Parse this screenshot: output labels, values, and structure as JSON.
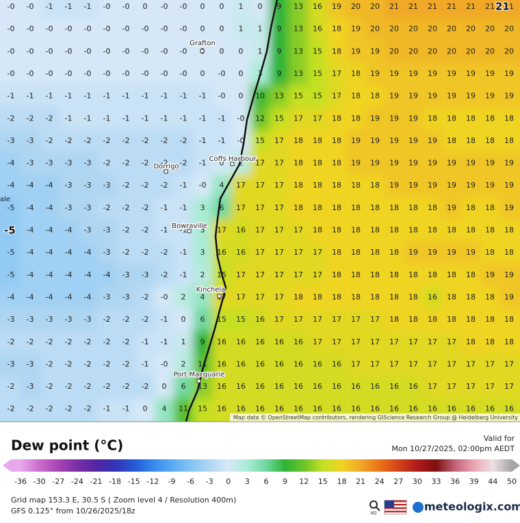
{
  "map": {
    "grid": [
      [
        "-0",
        "-0",
        "-1",
        "-1",
        "-1",
        "-0",
        "-0",
        "0",
        "-0",
        "-0",
        "0",
        "0",
        "1",
        "0",
        "9",
        "13",
        "16",
        "19",
        "20",
        "20",
        "21",
        "21",
        "21",
        "21",
        "21",
        "21",
        "21"
      ],
      [
        "-0",
        "-0",
        "-0",
        "-0",
        "-0",
        "-0",
        "-0",
        "-0",
        "-0",
        "-0",
        "0",
        "0",
        "1",
        "1",
        "9",
        "13",
        "16",
        "18",
        "19",
        "20",
        "20",
        "20",
        "20",
        "20",
        "20",
        "20",
        "20"
      ],
      [
        "-0",
        "-0",
        "-0",
        "-0",
        "-0",
        "-0",
        "-0",
        "-0",
        "-0",
        "-0",
        "0",
        "0",
        "0",
        "1",
        "9",
        "13",
        "15",
        "18",
        "19",
        "19",
        "20",
        "20",
        "20",
        "20",
        "20",
        "20",
        "20"
      ],
      [
        "-0",
        "-0",
        "-0",
        "-0",
        "-0",
        "-0",
        "-0",
        "-0",
        "-0",
        "-0",
        "0",
        "-0",
        "0",
        "3",
        "9",
        "13",
        "15",
        "17",
        "18",
        "19",
        "19",
        "19",
        "19",
        "19",
        "19",
        "19",
        "19"
      ],
      [
        "-1",
        "-1",
        "-1",
        "-1",
        "-1",
        "-1",
        "-1",
        "-1",
        "-1",
        "-1",
        "-1",
        "-0",
        "0",
        "10",
        "13",
        "15",
        "15",
        "17",
        "18",
        "18",
        "19",
        "19",
        "19",
        "19",
        "19",
        "19",
        "19"
      ],
      [
        "-2",
        "-2",
        "-2",
        "-1",
        "-1",
        "-1",
        "-1",
        "-1",
        "-1",
        "-1",
        "-1",
        "-1",
        "-0",
        "12",
        "15",
        "17",
        "17",
        "18",
        "18",
        "19",
        "19",
        "19",
        "18",
        "18",
        "18",
        "18",
        "18"
      ],
      [
        "-3",
        "-3",
        "-2",
        "-2",
        "-2",
        "-2",
        "-2",
        "-2",
        "-2",
        "-2",
        "-1",
        "-1",
        "-0",
        "15",
        "17",
        "18",
        "18",
        "18",
        "19",
        "19",
        "19",
        "19",
        "19",
        "18",
        "18",
        "18",
        "18"
      ],
      [
        "-4",
        "-3",
        "-3",
        "-3",
        "-3",
        "-2",
        "-2",
        "-2",
        "-2",
        "-2",
        "-1",
        "0",
        "2",
        "17",
        "17",
        "18",
        "18",
        "18",
        "19",
        "19",
        "19",
        "19",
        "19",
        "19",
        "19",
        "19",
        "19"
      ],
      [
        "-4",
        "-4",
        "-4",
        "-3",
        "-3",
        "-3",
        "-2",
        "-2",
        "-2",
        "-1",
        "-0",
        "4",
        "17",
        "17",
        "17",
        "18",
        "18",
        "18",
        "18",
        "18",
        "19",
        "19",
        "19",
        "19",
        "19",
        "19",
        "19"
      ],
      [
        "-5",
        "-4",
        "-4",
        "-3",
        "-3",
        "-2",
        "-2",
        "-2",
        "-1",
        "-1",
        "3",
        "6",
        "17",
        "17",
        "17",
        "18",
        "18",
        "18",
        "18",
        "18",
        "18",
        "18",
        "18",
        "19",
        "18",
        "18",
        "19"
      ],
      [
        "-5",
        "-4",
        "-4",
        "-4",
        "-3",
        "-3",
        "-2",
        "-2",
        "-1",
        "-1",
        "3",
        "17",
        "16",
        "17",
        "17",
        "17",
        "18",
        "18",
        "18",
        "18",
        "18",
        "18",
        "18",
        "18",
        "18",
        "18",
        "18"
      ],
      [
        "-5",
        "-4",
        "-4",
        "-4",
        "-4",
        "-3",
        "-2",
        "-2",
        "-2",
        "-1",
        "3",
        "16",
        "16",
        "17",
        "17",
        "17",
        "17",
        "18",
        "18",
        "18",
        "18",
        "19",
        "19",
        "19",
        "19",
        "18",
        "18"
      ],
      [
        "-5",
        "-4",
        "-4",
        "-4",
        "-4",
        "-4",
        "-3",
        "-3",
        "-2",
        "-1",
        "2",
        "15",
        "17",
        "17",
        "17",
        "17",
        "17",
        "18",
        "18",
        "18",
        "18",
        "18",
        "18",
        "18",
        "18",
        "19",
        "19"
      ],
      [
        "-4",
        "-4",
        "-4",
        "-4",
        "-4",
        "-3",
        "-3",
        "-2",
        "-0",
        "2",
        "4",
        "17",
        "17",
        "17",
        "17",
        "18",
        "18",
        "18",
        "18",
        "18",
        "18",
        "18",
        "16",
        "18",
        "18",
        "18",
        "19"
      ],
      [
        "-3",
        "-3",
        "-3",
        "-3",
        "-3",
        "-2",
        "-2",
        "-2",
        "-1",
        "0",
        "6",
        "15",
        "15",
        "16",
        "17",
        "17",
        "17",
        "17",
        "17",
        "17",
        "18",
        "18",
        "18",
        "18",
        "18",
        "18",
        "18"
      ],
      [
        "-2",
        "-2",
        "-2",
        "-2",
        "-2",
        "-2",
        "-2",
        "-1",
        "-1",
        "1",
        "9",
        "16",
        "16",
        "16",
        "16",
        "16",
        "17",
        "17",
        "17",
        "17",
        "17",
        "17",
        "17",
        "17",
        "18",
        "18",
        "18"
      ],
      [
        "-3",
        "-3",
        "-2",
        "-2",
        "-2",
        "-2",
        "-2",
        "-1",
        "-0",
        "2",
        "11",
        "16",
        "16",
        "16",
        "16",
        "16",
        "16",
        "16",
        "17",
        "17",
        "17",
        "17",
        "17",
        "17",
        "17",
        "17",
        "17"
      ],
      [
        "-2",
        "-3",
        "-2",
        "-2",
        "-2",
        "-2",
        "-2",
        "-2",
        "0",
        "6",
        "13",
        "16",
        "16",
        "16",
        "16",
        "16",
        "16",
        "16",
        "16",
        "16",
        "16",
        "16",
        "17",
        "17",
        "17",
        "17",
        "17"
      ],
      [
        "-2",
        "-2",
        "-2",
        "-2",
        "-2",
        "-1",
        "-1",
        "0",
        "4",
        "11",
        "15",
        "16",
        "16",
        "16",
        "16",
        "16",
        "16",
        "16",
        "16",
        "16",
        "16",
        "16",
        "16",
        "16",
        "16",
        "16",
        "16"
      ]
    ],
    "places": [
      "Grafton",
      "Coffs Harbour",
      "Dorrigo",
      "Bowraville",
      "Kinchela",
      "Port Macquarie"
    ],
    "edge_labels": [
      "ale",
      "-5",
      "21"
    ],
    "attribution": "Map data © OpenStreetMap contributors, rendering GIScience Research Group @ Heidelberg University"
  },
  "legend": {
    "title": "Dew point (°C)",
    "valid_label": "Valid for",
    "valid_time": "Mon 10/27/2025, 02:00pm AEDT",
    "labels": [
      "-36",
      "-30",
      "-27",
      "-24",
      "-21",
      "-18",
      "-15",
      "-12",
      "-9",
      "-6",
      "-3",
      "0",
      "3",
      "6",
      "9",
      "12",
      "15",
      "18",
      "21",
      "24",
      "27",
      "30",
      "33",
      "36",
      "39",
      "44",
      "50"
    ],
    "colors": [
      "#e8a8ec",
      "#c86ccc",
      "#a844b4",
      "#7a2ea4",
      "#5426a4",
      "#3434b4",
      "#2458d4",
      "#3488ec",
      "#58aaf4",
      "#84c4f4",
      "#aed6f2",
      "#d6e8f8",
      "#a8ecd4",
      "#70d8a0",
      "#2cb434",
      "#6cc428",
      "#c4e024",
      "#f0d424",
      "#f0a828",
      "#ea7418",
      "#d44418",
      "#b01a18",
      "#7e1010",
      "#c06478",
      "#eca4b4",
      "#eee0e4",
      "#a4a4a4"
    ]
  },
  "footer": {
    "grid_info": "Grid map 153.3 E, 30.5 S ( Zoom level 4 / Resolution 400m)",
    "model_info": "GFS 0.125° from  10/26/2025/18z",
    "brand": "meteologix.com",
    "hd": "HD"
  }
}
